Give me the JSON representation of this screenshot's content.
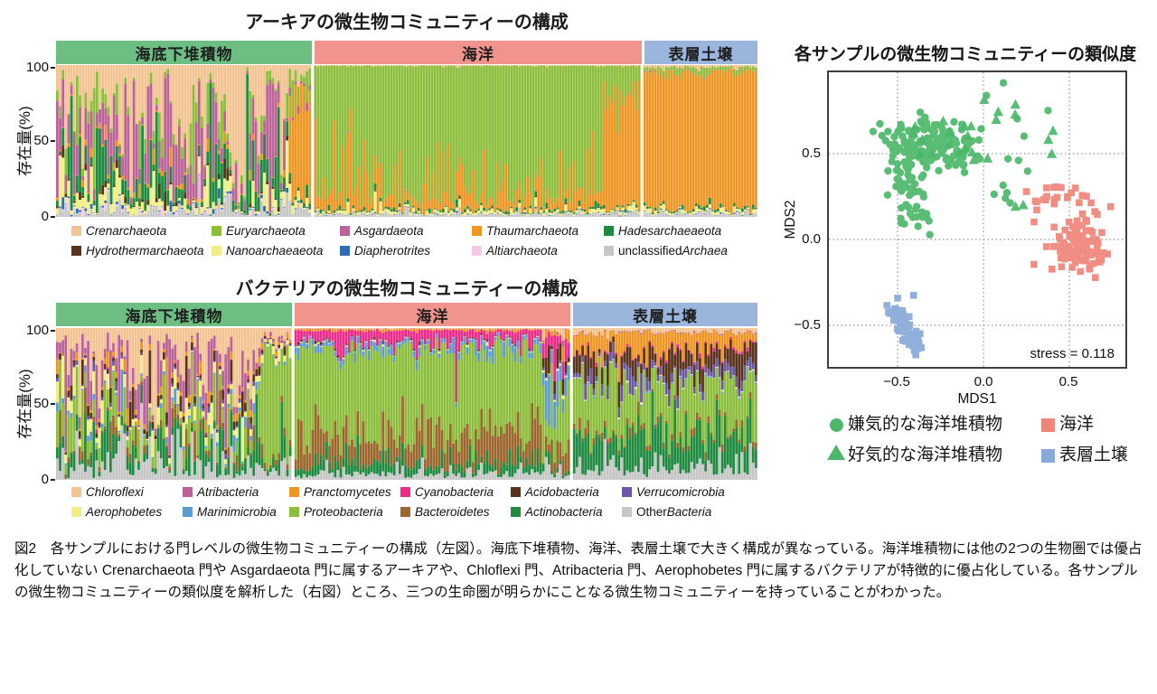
{
  "figure_caption": "図2　各サンプルにおける門レベルの微生物コミュニティーの構成（左図）。海底下堆積物、海洋、表層土壌で大きく構成が異なっている。海洋堆積物には他の2つの生物圏では優占化していない Crenarchaeota 門や Asgardaeota 門に属するアーキアや、Chloflexi 門、Atribacteria 門、Aerophobetes 門に属するバクテリアが特徴的に優占化している。各サンプルの微生物コミュニティーの類似度を解析した（右図）ところ、三つの生命圏が明らかにことなる微生物コミュニティーを持っていることがわかった。",
  "chart_data": [
    {
      "id": "archaea",
      "type": "bar",
      "variant": "stacked-percent",
      "title": "アーキアの微生物コミュニティーの構成",
      "ylabel": "存在量(%)",
      "yticks": [
        "100",
        "50",
        "0"
      ],
      "ylim": [
        0,
        100
      ],
      "seed": 12345,
      "groups": [
        {
          "label": "海底下堆積物",
          "color": "#6cbe82",
          "width_frac": 0.365,
          "segments": [
            {
              "n": 82,
              "jitter": 1.05,
              "means": [
                30,
                7,
                27,
                1.5,
                12,
                1.5,
                7,
                0.8,
                0.8,
                3.5
              ],
              "spikes": {
                "1": {
                  "p": 0.1,
                  "m": 4.5
                }
              }
            },
            {
              "n": 8,
              "jitter": 0.6,
              "means": [
                5,
                6,
                2,
                70,
                4,
                0.5,
                6,
                0.3,
                0.3,
                3
              ],
              "spikes": {}
            }
          ]
        },
        {
          "label": "海洋",
          "color": "#f2948e",
          "width_frac": 0.467,
          "segments": [
            {
              "n": 106,
              "jitter": 0.5,
              "means": [
                0.5,
                84,
                0.2,
                6.5,
                1.3,
                0.2,
                2,
                0.3,
                0.2,
                1.6
              ],
              "spikes": {
                "3": {
                  "p": 0.32,
                  "m": 7.5
                }
              }
            },
            {
              "n": 14,
              "jitter": 0.55,
              "means": [
                0.5,
                20,
                0.2,
                72,
                1,
                0.2,
                2,
                0.3,
                0.2,
                1.5
              ],
              "spikes": {}
            }
          ]
        },
        {
          "label": "表層土壌",
          "color": "#9ab6dd",
          "width_frac": 0.163,
          "segments": [
            {
              "n": 42,
              "jitter": 0.5,
              "means": [
                1.2,
                3,
                0.2,
                90,
                1,
                0.2,
                2,
                0.3,
                0.3,
                1.6
              ],
              "spikes": {}
            }
          ]
        }
      ],
      "taxa": [
        {
          "prefix": "",
          "name": "Crenarchaeota",
          "color": "#f3c391"
        },
        {
          "prefix": "",
          "name": "Euryarchaeota",
          "color": "#8cbe3c"
        },
        {
          "prefix": "",
          "name": "Asgardaeota",
          "color": "#bb6399"
        },
        {
          "prefix": "",
          "name": "Thaumarchaeota",
          "color": "#ee9522"
        },
        {
          "prefix": "",
          "name": "Hadesarchaeaeota",
          "color": "#1f8b41"
        },
        {
          "prefix": "",
          "name": "Hydrothermarchaeota",
          "color": "#59331b"
        },
        {
          "prefix": "",
          "name": "Nanoarchaeaeota",
          "color": "#f1ee86"
        },
        {
          "prefix": "",
          "name": "Diapherotrites",
          "color": "#2e6cb5"
        },
        {
          "prefix": "",
          "name": "Altiarchaeota",
          "color": "#f3cbe4"
        },
        {
          "prefix": "unclassified ",
          "name": "Archaea",
          "color": "#c6c6c6"
        }
      ]
    },
    {
      "id": "bacteria",
      "type": "bar",
      "variant": "stacked-percent",
      "title": "バクテリアの微生物コミュニティーの構成",
      "ylabel": "存在量(%)",
      "yticks": [
        "100",
        "50",
        "0"
      ],
      "ylim": [
        0,
        100
      ],
      "seed": 67890,
      "groups": [
        {
          "label": "海底下堆積物",
          "color": "#6cbe82",
          "width_frac": 0.336,
          "segments": [
            {
              "n": 72,
              "jitter": 1.0,
              "means": [
                22,
                20,
                3,
                0.3,
                4,
                1,
                7,
                1.5,
                11,
                3.5,
                13,
                10
              ],
              "spikes": {
                "8": {
                  "p": 0.1,
                  "m": 4
                }
              }
            },
            {
              "n": 12,
              "jitter": 0.55,
              "means": [
                6,
                2,
                2,
                0.3,
                1,
                0.5,
                4,
                1,
                68,
                2.5,
                7,
                6
              ],
              "spikes": {}
            }
          ]
        },
        {
          "label": "海洋",
          "color": "#f2948e",
          "width_frac": 0.393,
          "segments": [
            {
              "n": 88,
              "jitter": 0.5,
              "means": [
                0.5,
                0.2,
                1,
                6,
                0.5,
                0.5,
                0.5,
                4,
                55,
                20,
                8,
                4
              ],
              "spikes": {
                "3": {
                  "p": 0.18,
                  "m": 2.6
                }
              }
            },
            {
              "n": 10,
              "jitter": 0.75,
              "means": [
                2,
                0.5,
                4,
                22,
                8,
                1,
                1,
                14,
                28,
                9,
                6,
                5
              ],
              "spikes": {}
            }
          ]
        },
        {
          "label": "表層土壌",
          "color": "#9ab6dd",
          "width_frac": 0.263,
          "segments": [
            {
              "n": 66,
              "jitter": 0.55,
              "means": [
                3,
                0.5,
                12,
                1,
                13,
                6,
                0.5,
                0.5,
                30,
                3,
                22,
                8
              ],
              "spikes": {}
            }
          ]
        }
      ],
      "taxa": [
        {
          "prefix": "",
          "name": "Chloroflexi",
          "color": "#f3c391"
        },
        {
          "prefix": "",
          "name": "Atribacteria",
          "color": "#bb6399"
        },
        {
          "prefix": "",
          "name": "Pranctomycetes",
          "color": "#ee9522"
        },
        {
          "prefix": "",
          "name": "Cyanobacteria",
          "color": "#ee2a8b"
        },
        {
          "prefix": "",
          "name": "Acidobacteria",
          "color": "#59331b"
        },
        {
          "prefix": "",
          "name": "Verrucomicrobia",
          "color": "#6a57a5"
        },
        {
          "prefix": "",
          "name": "Aerophobetes",
          "color": "#f1ee86"
        },
        {
          "prefix": "",
          "name": "Marinimicrobia",
          "color": "#5f9bd3"
        },
        {
          "prefix": "",
          "name": "Proteobacteria",
          "color": "#8cbe3c"
        },
        {
          "prefix": "",
          "name": "Bacteroidetes",
          "color": "#9c662c"
        },
        {
          "prefix": "",
          "name": "Actinobacteria",
          "color": "#1f8b41"
        },
        {
          "prefix": "Other ",
          "name": "Bacteria",
          "color": "#c6c6c6"
        }
      ]
    },
    {
      "id": "mds",
      "type": "scatter",
      "title": "各サンプルの微生物コミュニティーの類似度",
      "xlabel": "MDS1",
      "ylabel": "MDS2",
      "xticks": [
        -0.5,
        0.0,
        0.5
      ],
      "yticks": [
        0.5,
        0.0,
        -0.5
      ],
      "xtick_labels": [
        "−0.5",
        "0.0",
        "0.5"
      ],
      "ytick_labels": [
        "0.5",
        "0.0",
        "−0.5"
      ],
      "xlim": [
        -0.91,
        0.84
      ],
      "ylim": [
        -0.75,
        0.98
      ],
      "annotation": "stress = 0.118",
      "seed": 424242,
      "series": [
        {
          "name": "嫌気的な海洋堆積物",
          "marker": "circle",
          "color": "#4db86a",
          "clusters": [
            {
              "cx": -0.33,
              "cy": 0.54,
              "sx": 0.14,
              "sy": 0.07,
              "n": 150
            },
            {
              "cx": -0.42,
              "cy": 0.33,
              "sx": 0.07,
              "sy": 0.1,
              "n": 35
            },
            {
              "cx": -0.38,
              "cy": 0.13,
              "sx": 0.06,
              "sy": 0.05,
              "n": 14
            },
            {
              "cx": 0.07,
              "cy": 0.5,
              "sx": 0.1,
              "sy": 0.12,
              "n": 6
            },
            {
              "cx": 0.25,
              "cy": 0.8,
              "sx": 0.12,
              "sy": 0.06,
              "n": 4
            },
            {
              "cx": 0.12,
              "cy": 0.27,
              "sx": 0.04,
              "sy": 0.04,
              "n": 4
            }
          ]
        },
        {
          "name": "好気的な海洋堆積物",
          "marker": "triangle",
          "color": "#4db86a",
          "clusters": [
            {
              "cx": -0.3,
              "cy": 0.58,
              "sx": 0.12,
              "sy": 0.05,
              "n": 9
            },
            {
              "cx": 0.02,
              "cy": 0.7,
              "sx": 0.1,
              "sy": 0.08,
              "n": 5
            },
            {
              "cx": -0.12,
              "cy": 0.5,
              "sx": 0.1,
              "sy": 0.04,
              "n": 5
            },
            {
              "cx": 0.3,
              "cy": 0.72,
              "sx": 0.1,
              "sy": 0.1,
              "n": 4
            },
            {
              "cx": 0.42,
              "cy": 0.5,
              "sx": 0.02,
              "sy": 0.02,
              "n": 1
            },
            {
              "cx": 0.2,
              "cy": 0.23,
              "sx": 0.05,
              "sy": 0.03,
              "n": 2
            }
          ]
        },
        {
          "name": "海洋",
          "marker": "square",
          "color": "#ef8579",
          "clusters": [
            {
              "cx": 0.55,
              "cy": -0.05,
              "sx": 0.09,
              "sy": 0.08,
              "n": 105
            },
            {
              "cx": 0.4,
              "cy": 0.26,
              "sx": 0.08,
              "sy": 0.04,
              "n": 18
            },
            {
              "cx": 0.62,
              "cy": 0.2,
              "sx": 0.05,
              "sy": 0.06,
              "n": 6
            },
            {
              "cx": 0.3,
              "cy": 0.18,
              "sx": 0.03,
              "sy": 0.03,
              "n": 3
            }
          ]
        },
        {
          "name": "表層土壌",
          "marker": "square",
          "color": "#87aad8",
          "clusters": [
            {
              "line": true,
              "x0": -0.53,
              "y0": -0.4,
              "x1": -0.38,
              "y1": -0.64,
              "sx": 0.022,
              "sy": 0.02,
              "n": 85
            },
            {
              "cx": -0.51,
              "cy": -0.34,
              "sx": 0.008,
              "sy": 0.008,
              "n": 1
            },
            {
              "cx": -0.4,
              "cy": -0.33,
              "sx": 0.008,
              "sy": 0.008,
              "n": 1
            }
          ]
        }
      ]
    }
  ]
}
